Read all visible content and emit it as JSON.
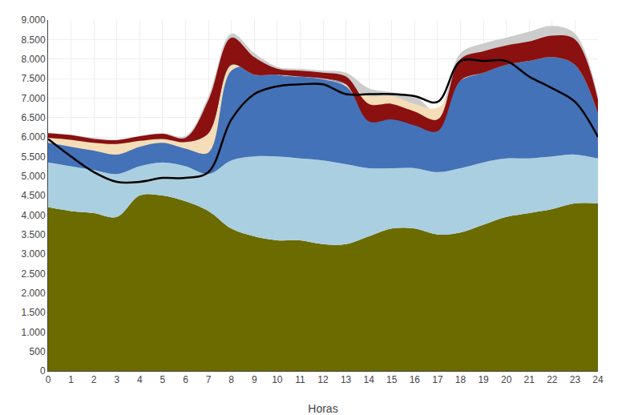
{
  "chart_data": {
    "type": "area",
    "xlabel": "Horas",
    "x": [
      0,
      1,
      2,
      3,
      4,
      5,
      6,
      7,
      8,
      9,
      10,
      11,
      12,
      13,
      14,
      15,
      16,
      17,
      18,
      19,
      20,
      21,
      22,
      23,
      24
    ],
    "xlim": [
      0,
      24
    ],
    "xticks": [
      0,
      1,
      2,
      3,
      4,
      5,
      6,
      7,
      8,
      9,
      10,
      11,
      12,
      13,
      14,
      15,
      16,
      17,
      18,
      19,
      20,
      21,
      22,
      23,
      24
    ],
    "ylim": [
      0,
      9000
    ],
    "yticks": [
      0,
      500,
      {
        "value": 1000,
        "label": "1.000"
      },
      {
        "value": 1500,
        "label": "1.500"
      },
      {
        "value": 2000,
        "label": "2.000"
      },
      {
        "value": 2500,
        "label": "2.500"
      },
      {
        "value": 3000,
        "label": "3.000"
      },
      {
        "value": 3500,
        "label": "3.500"
      },
      {
        "value": 4000,
        "label": "4.000"
      },
      {
        "value": 4500,
        "label": "4.500"
      },
      {
        "value": 5000,
        "label": "5.000"
      },
      {
        "value": 5500,
        "label": "5.500"
      },
      {
        "value": 6000,
        "label": "6.000"
      },
      {
        "value": 6500,
        "label": "6.500"
      },
      {
        "value": 7000,
        "label": "7.000"
      },
      {
        "value": 7500,
        "label": "7.500"
      },
      {
        "value": 8000,
        "label": "8.000"
      },
      {
        "value": 8500,
        "label": "8.500"
      },
      {
        "value": 9000,
        "label": "9.000"
      }
    ],
    "grid": true,
    "series": [
      {
        "type": "area",
        "color": "#6b6b00",
        "values": [
          4200,
          4100,
          4050,
          3950,
          4500,
          4500,
          4350,
          4100,
          3650,
          3450,
          3350,
          3350,
          3250,
          3250,
          3450,
          3650,
          3650,
          3500,
          3550,
          3750,
          3950,
          4050,
          4150,
          4300,
          4300
        ]
      },
      {
        "type": "area",
        "color": "#aacfe0",
        "lower": [
          4200,
          4100,
          4050,
          3950,
          4500,
          4500,
          4350,
          4100,
          3650,
          3450,
          3350,
          3350,
          3250,
          3250,
          3450,
          3650,
          3650,
          3500,
          3550,
          3750,
          3950,
          4050,
          4150,
          4300,
          4300
        ],
        "values": [
          5350,
          5250,
          5150,
          5050,
          5250,
          5350,
          5250,
          5050,
          5400,
          5500,
          5500,
          5450,
          5400,
          5300,
          5200,
          5200,
          5200,
          5100,
          5200,
          5350,
          5450,
          5450,
          5500,
          5550,
          5450
        ]
      },
      {
        "type": "area",
        "color": "#4472b8",
        "lower": [
          5350,
          5250,
          5150,
          5050,
          5250,
          5350,
          5250,
          5050,
          5400,
          5500,
          5500,
          5450,
          5400,
          5300,
          5200,
          5200,
          5200,
          5100,
          5200,
          5350,
          5450,
          5450,
          5500,
          5550,
          5450
        ],
        "values": [
          5950,
          5850,
          5750,
          5650,
          5850,
          5950,
          5800,
          6950,
          8000,
          7800,
          7600,
          7550,
          7500,
          7350,
          6600,
          6600,
          6550,
          6400,
          7700,
          7900,
          8100,
          8200,
          8400,
          8000,
          6750
        ]
      },
      {
        "type": "area",
        "color": "#cccccc",
        "lower": [
          5950,
          5850,
          5750,
          5650,
          5850,
          5950,
          5800,
          6950,
          8000,
          7800,
          7600,
          7550,
          7500,
          7350,
          6600,
          6600,
          6550,
          6400,
          7700,
          7900,
          8100,
          8200,
          8400,
          8000,
          6750
        ],
        "values": [
          6100,
          6050,
          5980,
          5930,
          6020,
          6100,
          6030,
          7050,
          8650,
          8150,
          7800,
          7750,
          7700,
          7650,
          7250,
          7150,
          7050,
          6650,
          8150,
          8400,
          8550,
          8700,
          8850,
          8650,
          7050
        ]
      },
      {
        "type": "area",
        "color": "#f5ddb8",
        "lower": [
          5850,
          5750,
          5650,
          5550,
          5750,
          5850,
          5700,
          5600,
          7700,
          7800,
          7600,
          7550,
          7480,
          7300,
          6550,
          6500,
          6480,
          6380,
          7650,
          7850,
          8050,
          8150,
          8350,
          7950,
          6700
        ],
        "values": [
          5980,
          5930,
          5850,
          5820,
          5900,
          5950,
          5870,
          6100,
          7850,
          7600,
          7600,
          7550,
          7500,
          7350,
          7050,
          7050,
          6850,
          6750,
          7450,
          7650,
          7850,
          7950,
          8050,
          7850,
          6600
        ]
      },
      {
        "type": "area",
        "color": "#8b1010",
        "lower": [
          5980,
          5930,
          5850,
          5820,
          5900,
          5950,
          5870,
          6100,
          7850,
          7600,
          7600,
          7550,
          7500,
          7350,
          6400,
          6450,
          6300,
          6150,
          7450,
          7650,
          7850,
          7950,
          8050,
          7850,
          6600
        ],
        "values": [
          6100,
          6050,
          5950,
          5920,
          6020,
          6080,
          5980,
          6950,
          8550,
          8050,
          7750,
          7700,
          7650,
          7550,
          6850,
          6850,
          6650,
          6450,
          8000,
          8200,
          8350,
          8450,
          8600,
          8500,
          6950
        ]
      },
      {
        "type": "line",
        "color": "#000000",
        "values": [
          5950,
          5500,
          5100,
          4850,
          4850,
          4950,
          4950,
          5100,
          6450,
          7100,
          7300,
          7350,
          7350,
          7100,
          7100,
          7100,
          7050,
          6900,
          7950,
          7950,
          7950,
          7550,
          7250,
          6900,
          6000
        ]
      }
    ]
  }
}
